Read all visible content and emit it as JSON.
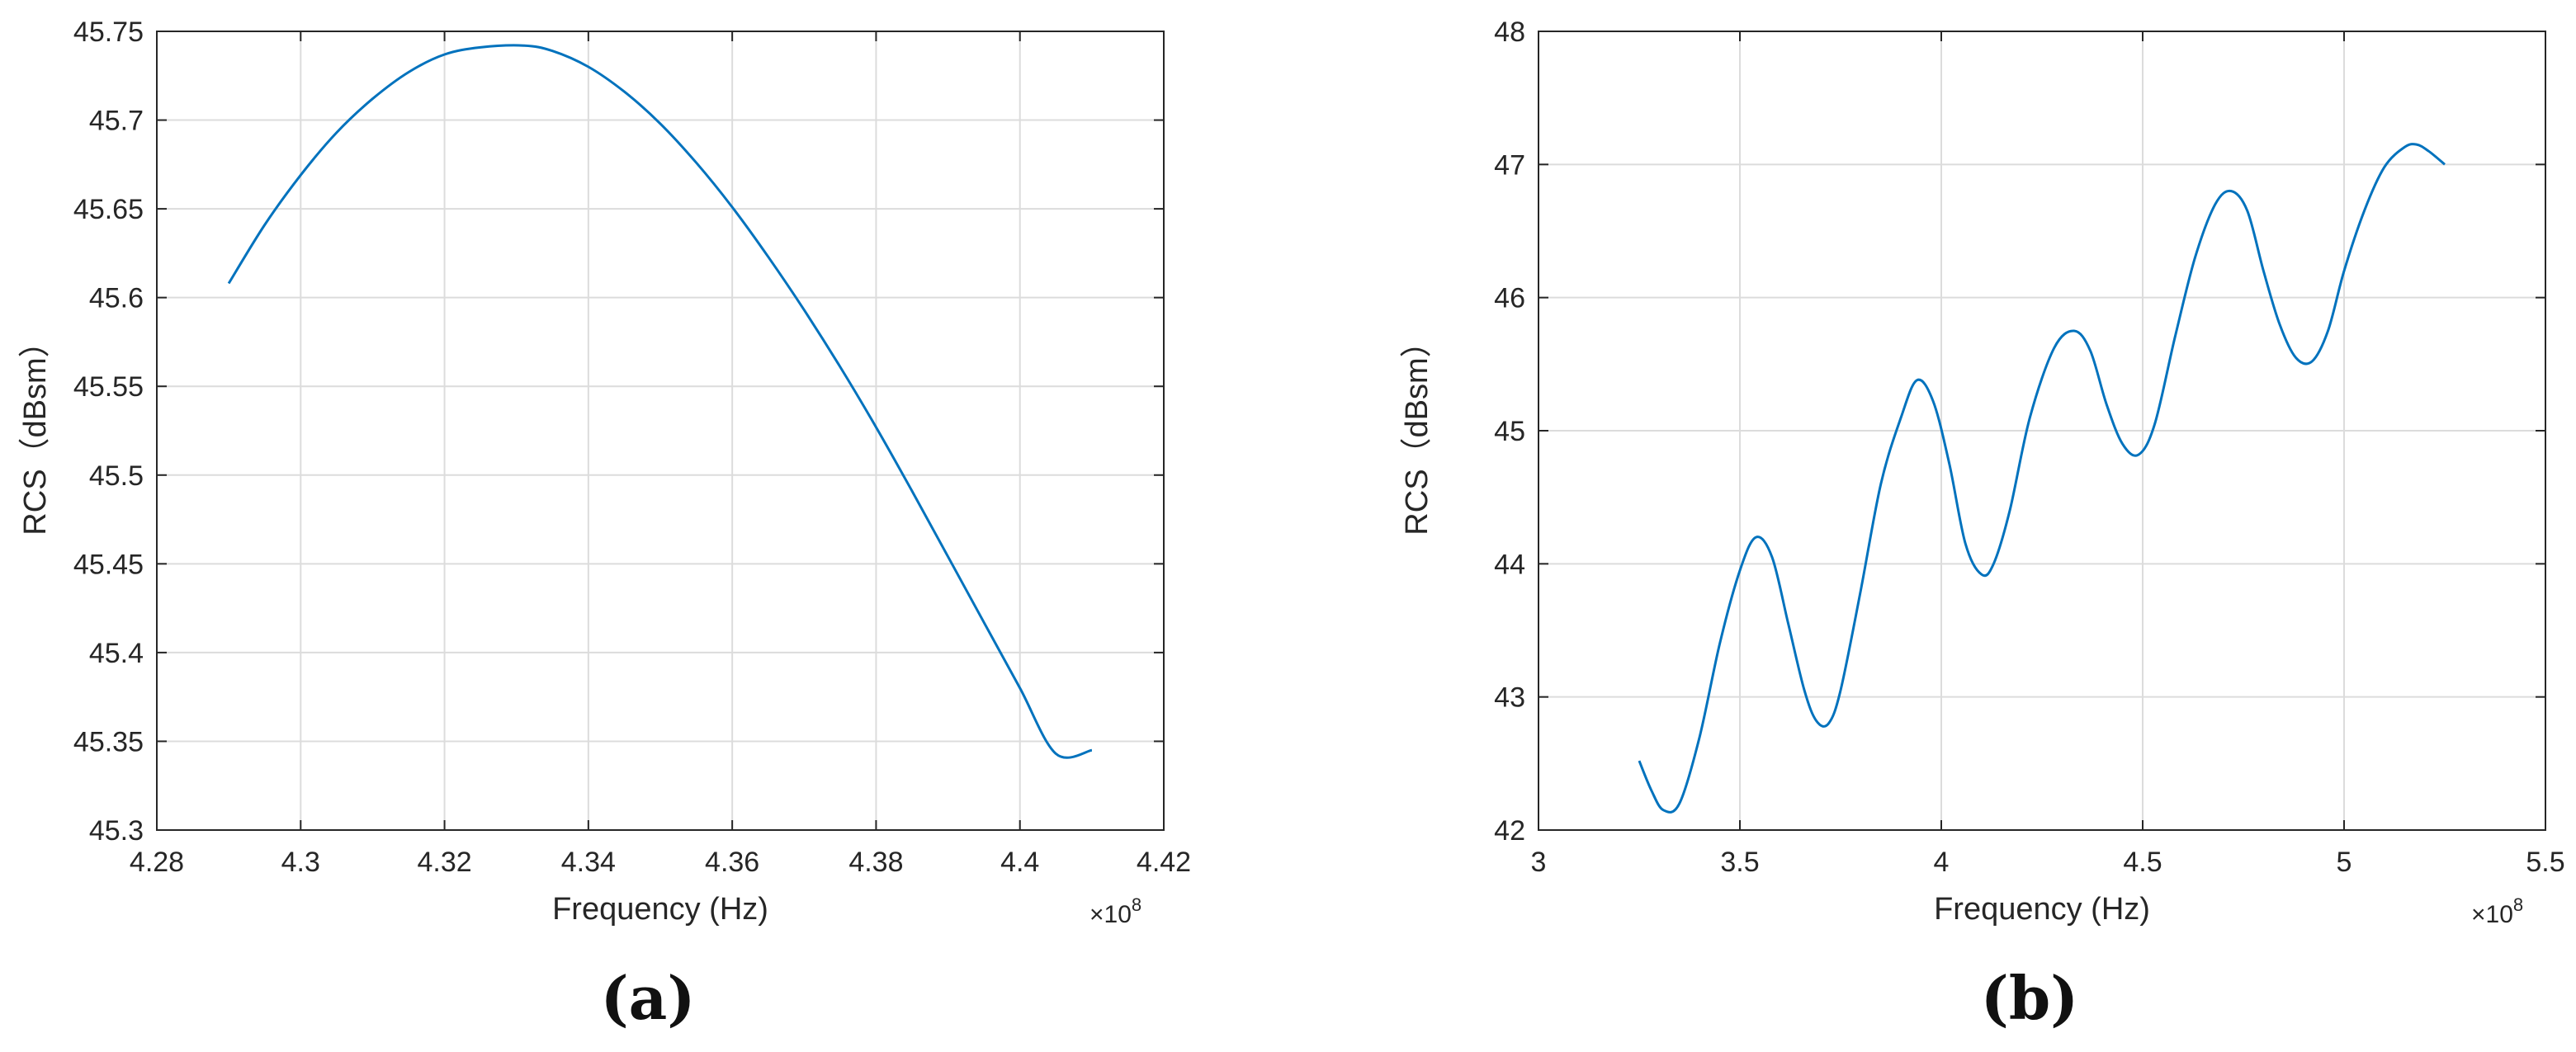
{
  "colors": {
    "line": "#0072BD",
    "grid": "#dcdcdc",
    "axis": "#262626",
    "background": "#ffffff"
  },
  "chart_data": [
    {
      "type": "line",
      "panel_label": "(a)",
      "xlabel": "Frequency (Hz)",
      "ylabel": "RCS（dBsm）",
      "x_exponent_label": "×10",
      "x_exponent_power": "8",
      "xlim": [
        4.28,
        4.42
      ],
      "ylim": [
        45.3,
        45.75
      ],
      "xticks": [
        4.28,
        4.3,
        4.32,
        4.34,
        4.36,
        4.38,
        4.4,
        4.42
      ],
      "xtick_labels": [
        "4.28",
        "4.3",
        "4.32",
        "4.34",
        "4.36",
        "4.38",
        "4.4",
        "4.42"
      ],
      "yticks": [
        45.3,
        45.35,
        45.4,
        45.45,
        45.5,
        45.55,
        45.6,
        45.65,
        45.7,
        45.75
      ],
      "ytick_labels": [
        "45.3",
        "45.35",
        "45.4",
        "45.45",
        "45.5",
        "45.55",
        "45.6",
        "45.65",
        "45.7",
        "45.75"
      ],
      "grid": true,
      "series": [
        {
          "x": [
            4.29,
            4.295,
            4.3,
            4.305,
            4.31,
            4.315,
            4.32,
            4.325,
            4.331,
            4.335,
            4.34,
            4.345,
            4.35,
            4.355,
            4.36,
            4.365,
            4.37,
            4.375,
            4.38,
            4.385,
            4.39,
            4.395,
            4.4,
            4.405,
            4.41
          ],
          "y": [
            45.608,
            45.641,
            45.669,
            45.693,
            45.712,
            45.727,
            45.737,
            45.741,
            45.742,
            45.739,
            45.73,
            45.716,
            45.698,
            45.676,
            45.651,
            45.623,
            45.593,
            45.561,
            45.527,
            45.491,
            45.454,
            45.417,
            45.38,
            45.343,
            45.345
          ]
        }
      ]
    },
    {
      "type": "line",
      "panel_label": "(b)",
      "xlabel": "Frequency (Hz)",
      "ylabel": "RCS（dBsm）",
      "x_exponent_label": "×10",
      "x_exponent_power": "8",
      "xlim": [
        3,
        5.5
      ],
      "ylim": [
        42,
        48
      ],
      "xticks": [
        3,
        3.5,
        4,
        4.5,
        5,
        5.5
      ],
      "xtick_labels": [
        "3",
        "3.5",
        "4",
        "4.5",
        "5",
        "5.5"
      ],
      "yticks": [
        42,
        43,
        44,
        45,
        46,
        47,
        48
      ],
      "ytick_labels": [
        "42",
        "43",
        "44",
        "45",
        "46",
        "47",
        "48"
      ],
      "grid": true,
      "series": [
        {
          "x": [
            3.25,
            3.28,
            3.31,
            3.35,
            3.4,
            3.45,
            3.5,
            3.54,
            3.58,
            3.62,
            3.66,
            3.69,
            3.72,
            3.75,
            3.8,
            3.85,
            3.9,
            3.94,
            3.98,
            4.02,
            4.06,
            4.1,
            4.13,
            4.17,
            4.22,
            4.28,
            4.33,
            4.37,
            4.41,
            4.45,
            4.49,
            4.53,
            4.58,
            4.63,
            4.68,
            4.72,
            4.76,
            4.8,
            4.84,
            4.88,
            4.92,
            4.96,
            5.0,
            5.05,
            5.1,
            5.15,
            5.18,
            5.21,
            5.25
          ],
          "y": [
            42.52,
            42.3,
            42.15,
            42.2,
            42.7,
            43.4,
            43.95,
            44.2,
            44.05,
            43.55,
            43.05,
            42.82,
            42.8,
            43.05,
            43.8,
            44.6,
            45.1,
            45.38,
            45.22,
            44.75,
            44.15,
            43.92,
            44.0,
            44.4,
            45.1,
            45.62,
            45.75,
            45.6,
            45.2,
            44.9,
            44.82,
            45.05,
            45.7,
            46.3,
            46.7,
            46.8,
            46.65,
            46.2,
            45.8,
            45.55,
            45.52,
            45.75,
            46.2,
            46.65,
            46.98,
            47.13,
            47.15,
            47.1,
            47.0
          ]
        }
      ]
    }
  ]
}
